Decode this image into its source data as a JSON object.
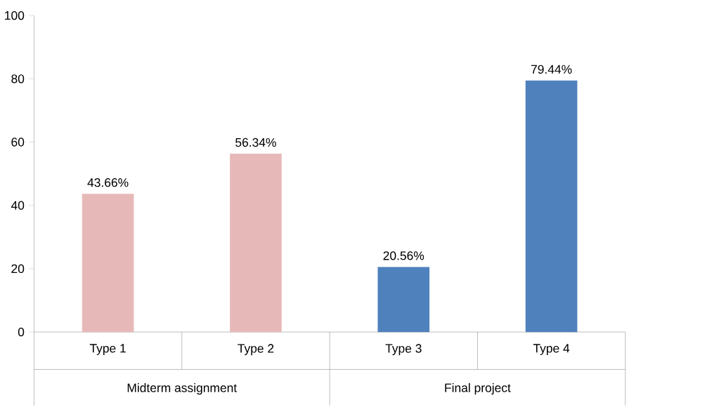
{
  "chart_data": {
    "type": "bar",
    "categories": [
      "Type 1",
      "Type 2",
      "Type 3",
      "Type 4"
    ],
    "values": [
      43.66,
      56.34,
      20.56,
      79.44
    ],
    "colors": [
      "#e6b9b8",
      "#e6b9b8",
      "#4f81bd",
      "#4f81bd"
    ],
    "value_labels": [
      "43.66%",
      "56.34%",
      "20.56%",
      "79.44%"
    ],
    "annotations": [
      "Midterm assignment",
      "Final project"
    ],
    "ylim": [
      0,
      100
    ],
    "yticks": [
      0,
      20,
      40,
      60,
      80,
      100
    ]
  }
}
